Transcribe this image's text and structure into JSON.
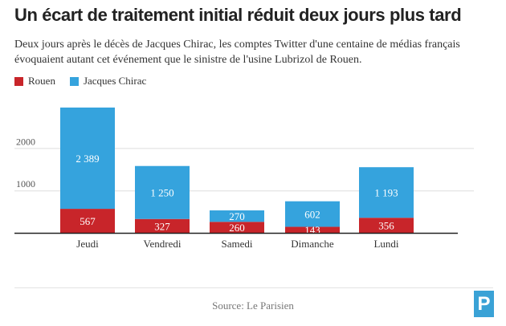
{
  "title": "Un écart de traitement initial réduit deux jours plus tard",
  "subtitle": "Deux jours après le décès de Jacques Chirac, les comptes Twitter d'une centaine de médias français évoquaient autant cet événement que le sinistre de l'usine Lubrizol de Rouen.",
  "source": "Source: Le Parisien",
  "logo": {
    "letter": "P",
    "icon": "le-parisien-logo"
  },
  "colors": {
    "rouen": "#c8252a",
    "chirac": "#35a3dd"
  },
  "chart_data": {
    "type": "bar",
    "stacked": true,
    "categories": [
      "Jeudi",
      "Vendredi",
      "Samedi",
      "Dimanche",
      "Lundi"
    ],
    "series": [
      {
        "name": "Rouen",
        "values": [
          567,
          327,
          260,
          143,
          356
        ]
      },
      {
        "name": "Jacques Chirac",
        "values": [
          2389,
          1250,
          270,
          602,
          1193
        ]
      }
    ],
    "value_labels": {
      "Rouen": [
        "567",
        "327",
        "260",
        "143",
        "356"
      ],
      "Jacques Chirac": [
        "2 389",
        "1 250",
        "270",
        "602",
        "1 193"
      ]
    },
    "yticks": [
      1000,
      2000
    ],
    "ytick_labels": [
      "1000",
      "2000"
    ],
    "ylim": [
      0,
      3000
    ],
    "grid": true,
    "legend_position": "top-left"
  }
}
